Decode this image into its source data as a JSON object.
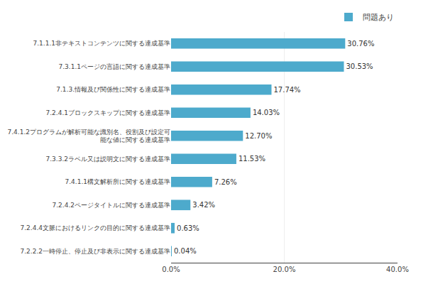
{
  "chart_data": {
    "type": "bar",
    "orientation": "horizontal",
    "categories": [
      "7.2.2.2一時停止、停止及び非表示に関する達成基準",
      "7.2.4.4文脈におけるリンクの目的に関する達成基準",
      "7.2.4.2ページタイトルに関する達成基準",
      "7.4.1.1構文解析所に関する達成基準",
      "7.3.3.2ラベル又は説明文に関する達成基準",
      "7.4.1.2プログラムが解析可能な識別名、役割及び設定可\n能な値に関する達成基準",
      "7.2.4.1ブロックスキップに関する達成基準",
      "7.1.3.情報及び関係性に関する達成基準",
      "7.3.1.1ページの言語に関する達成基準",
      "7.1.1.1非テキストコンテンツに関する達成基準"
    ],
    "series": [
      {
        "name": "問題あり",
        "color": "#4DAACC",
        "values": [
          0.04,
          0.63,
          3.42,
          7.26,
          11.53,
          12.7,
          14.03,
          17.74,
          30.53,
          30.76
        ],
        "value_labels": [
          "0.04%",
          "0.63%",
          "3.42%",
          "7.26%",
          "11.53%",
          "12.70%",
          "14.03%",
          "17.74%",
          "30.53%",
          "30.76%"
        ]
      }
    ],
    "xlim": [
      0,
      40
    ],
    "xticks": [
      {
        "value": 0,
        "label": "0.0%"
      },
      {
        "value": 20,
        "label": "20.0%"
      },
      {
        "value": 40,
        "label": "40.0%"
      }
    ],
    "grid": true,
    "legend": "upper right",
    "data_labels": true
  }
}
